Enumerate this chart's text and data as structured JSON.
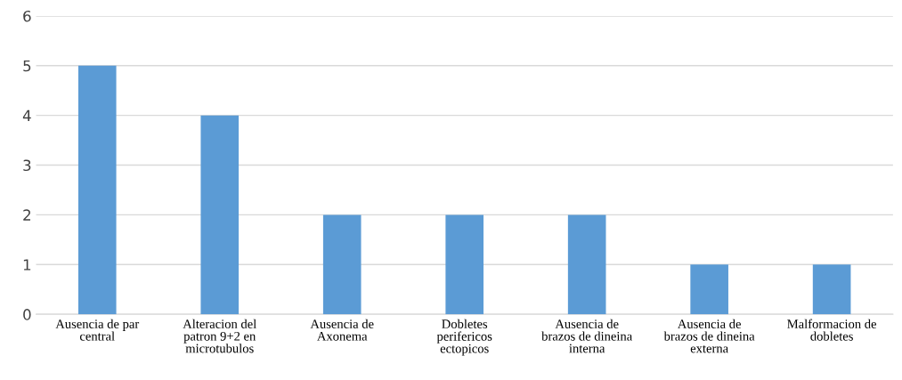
{
  "chart_data": {
    "type": "bar",
    "categories": [
      "Ausencia de par\ncentral",
      "Alteracion del\npatron 9+2 en\nmicrotubulos",
      "Ausencia de\nAxonema",
      "Dobletes\nperifericos\nectopicos",
      "Ausencia de\nbrazos de dineina\ninterna",
      "Ausencia de\nbrazos de dineina\nexterna",
      "Malformacion de\ndobletes"
    ],
    "values": [
      5,
      4,
      2,
      2,
      2,
      1,
      1
    ],
    "color": "#5b9bd5",
    "ylim": [
      0,
      6
    ],
    "yticks": [
      0,
      1,
      2,
      3,
      4,
      5,
      6
    ],
    "grid": "y"
  }
}
